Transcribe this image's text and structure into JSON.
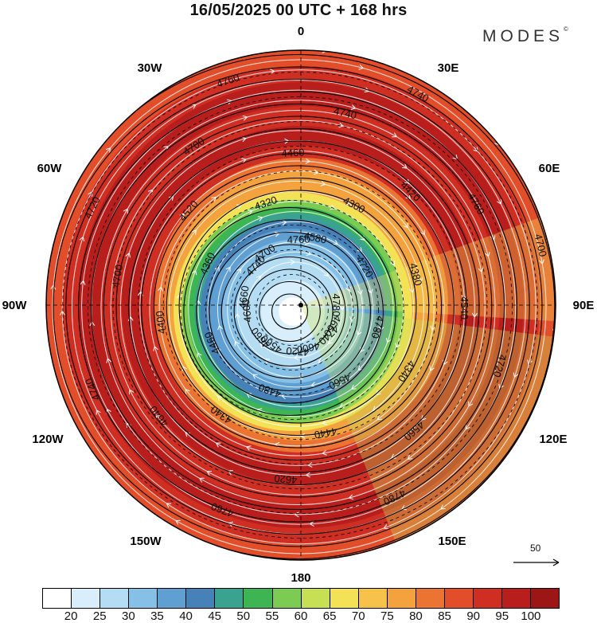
{
  "header": {
    "title": "16/05/2025  00 UTC  + 168 hrs",
    "brand": "MODES"
  },
  "map": {
    "projection": "north polar stereographic",
    "center": "North Pole",
    "field": "wind speed (shaded), geopotential height contours, streamlines",
    "longitude_labels": [
      {
        "text": "0",
        "position": "top"
      },
      {
        "text": "30E",
        "position": "top-right"
      },
      {
        "text": "60E",
        "position": "right-upper"
      },
      {
        "text": "90E",
        "position": "right"
      },
      {
        "text": "120E",
        "position": "right-lower"
      },
      {
        "text": "150E",
        "position": "bottom-right"
      },
      {
        "text": "180",
        "position": "bottom"
      },
      {
        "text": "150W",
        "position": "bottom-left"
      },
      {
        "text": "120W",
        "position": "left-lower"
      },
      {
        "text": "90W",
        "position": "left"
      },
      {
        "text": "60W",
        "position": "left-upper"
      },
      {
        "text": "30W",
        "position": "top-left"
      }
    ],
    "contour_labels": [
      "4780",
      "4740",
      "4720",
      "4660",
      "4660",
      "4700",
      "4580",
      "4720",
      "4780",
      "4560",
      "4480",
      "4460",
      "4360",
      "4320",
      "4300",
      "4380",
      "4340",
      "4440",
      "4340",
      "4400",
      "4520",
      "4460",
      "4420",
      "4540",
      "4560",
      "4620",
      "4640",
      "4700",
      "4700",
      "4740",
      "4760",
      "4720",
      "4780",
      "4760",
      "4740",
      "4720",
      "4760",
      "4740",
      "4700",
      "4660",
      "4600",
      "4560",
      "4600",
      "4740",
      "4760"
    ],
    "wind_reference": {
      "label": "50"
    }
  },
  "colorbar": {
    "colors": [
      "#ffffff",
      "#d8eefa",
      "#b4ddf4",
      "#86c0e6",
      "#5f9fd2",
      "#4682b8",
      "#3aa38f",
      "#3db552",
      "#7ccb52",
      "#c6df55",
      "#f3e156",
      "#f6c24a",
      "#f3a23d",
      "#ec7433",
      "#e24e2a",
      "#cf2e22",
      "#b81e1c",
      "#9c1616"
    ],
    "ticks": [
      "20",
      "25",
      "30",
      "35",
      "40",
      "45",
      "50",
      "55",
      "60",
      "65",
      "70",
      "75",
      "80",
      "85",
      "90",
      "95",
      "100"
    ]
  }
}
